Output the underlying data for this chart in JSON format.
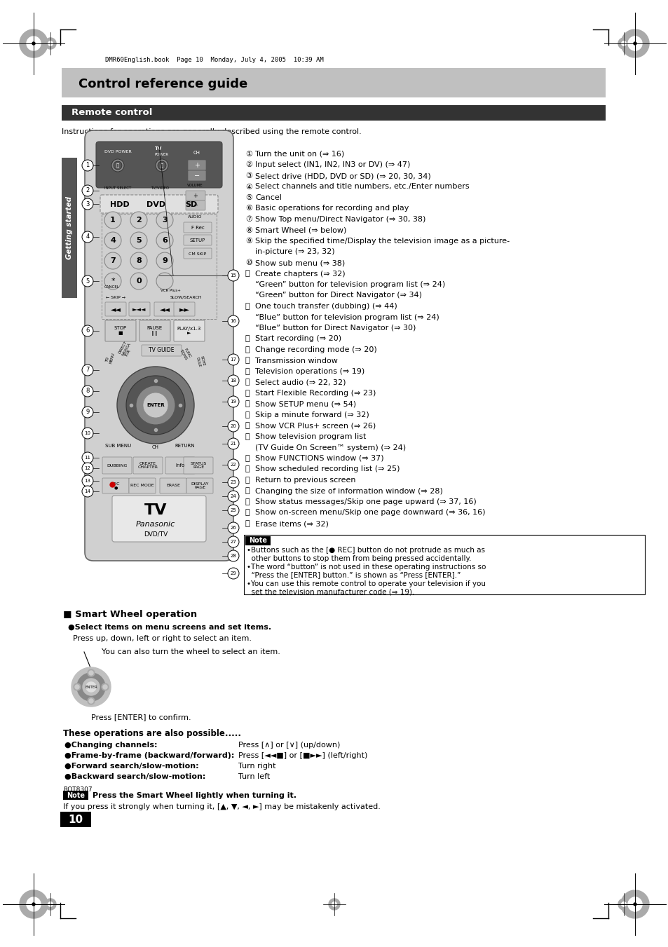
{
  "bg_color": "#ffffff",
  "title_bg_color": "#c8c8c8",
  "section_bg_color": "#333333",
  "title_text": "Control reference guide",
  "section_title": "Remote control",
  "instruction_text": "Instructions for operations are generally described using the remote control.",
  "file_ref_text": "DMR60English.book  Page 10  Monday, July 4, 2005  10:39 AM",
  "getting_started_text": "Getting started",
  "numbered_items": [
    [
      "①",
      "Turn the unit on (⇒ 16)"
    ],
    [
      "②",
      "Input select (IN1, IN2, IN3 or DV) (⇒ 47)"
    ],
    [
      "③",
      "Select drive (HDD, DVD or SD) (⇒ 20, 30, 34)"
    ],
    [
      "④",
      "Select channels and title numbers, etc./Enter numbers"
    ],
    [
      "⑤",
      "Cancel"
    ],
    [
      "⑥",
      "Basic operations for recording and play"
    ],
    [
      "⑦",
      "Show Top menu/Direct Navigator (⇒ 30, 38)"
    ],
    [
      "⑧",
      "Smart Wheel (⇒ below)"
    ],
    [
      "⑨",
      "Skip the specified time/Display the television image as a picture-"
    ],
    [
      "",
      "in-picture (⇒ 23, 32)"
    ],
    [
      "⑩",
      "Show sub menu (⇒ 38)"
    ],
    [
      "⑪",
      "Create chapters (⇒ 32)"
    ],
    [
      "",
      "“Green” button for television program list (⇒ 24)"
    ],
    [
      "",
      "“Green” button for Direct Navigator (⇒ 34)"
    ],
    [
      "⑫",
      "One touch transfer (dubbing) (⇒ 44)"
    ],
    [
      "",
      "“Blue” button for television program list (⇒ 24)"
    ],
    [
      "",
      "“Blue” button for Direct Navigator (⇒ 30)"
    ],
    [
      "⑬",
      "Start recording (⇒ 20)"
    ],
    [
      "⑭",
      "Change recording mode (⇒ 20)"
    ],
    [
      "⑮",
      "Transmission window"
    ],
    [
      "⑯",
      "Television operations (⇒ 19)"
    ],
    [
      "⑰",
      "Select audio (⇒ 22, 32)"
    ],
    [
      "⑱",
      "Start Flexible Recording (⇒ 23)"
    ],
    [
      "⑲",
      "Show SETUP menu (⇒ 54)"
    ],
    [
      "⑳",
      "Skip a minute forward (⇒ 32)"
    ],
    [
      "㉑",
      "Show VCR Plus+ screen (⇒ 26)"
    ],
    [
      "㉒",
      "Show television program list"
    ],
    [
      "",
      "(TV Guide On Screen™ system) (⇒ 24)"
    ],
    [
      "㉓",
      "Show FUNCTIONS window (⇒ 37)"
    ],
    [
      "㉔",
      "Show scheduled recording list (⇒ 25)"
    ],
    [
      "㉕",
      "Return to previous screen"
    ],
    [
      "㉖",
      "Changing the size of information window (⇒ 28)"
    ],
    [
      "㉗",
      "Show status messages/Skip one page upward (⇒ 37, 16)"
    ],
    [
      "㉘",
      "Show on-screen menu/Skip one page downward (⇒ 36, 16)"
    ],
    [
      "㉙",
      "Erase items (⇒ 32)"
    ]
  ],
  "note_lines": [
    "•Buttons such as the [● REC] button do not protrude as much as",
    "  other buttons to stop them from being pressed accidentally.",
    "•The word “button” is not used in these operating instructions so",
    "  “Press the [ENTER] button.” is shown as “Press [ENTER].”",
    "•You can use this remote control to operate your television if you",
    "  set the television manufacturer code (⇒ 19)."
  ],
  "smart_wheel_title": "■ Smart Wheel operation",
  "sw_bullet1": "●Select items on menu screens and set items.",
  "sw_text1": "Press up, down, left or right to select an item.",
  "sw_text2": "You can also turn the wheel to select an item.",
  "sw_text3": "Press [ENTER] to confirm.",
  "ops_title": "These operations are also possible.....",
  "ops": [
    [
      "●Changing channels:",
      "Press [∧] or [∨] (up/down)"
    ],
    [
      "●Frame-by-frame (backward/forward):",
      "Press [◄◄■] or [■►►] (left/right)"
    ],
    [
      "●Forward search/slow-motion:",
      "Turn right"
    ],
    [
      "●Backward search/slow-motion:",
      "Turn left"
    ]
  ],
  "bot_note_bold": "Press the Smart Wheel lightly when turning it.",
  "bot_note_text": "If you press it strongly when turning it, [▲, ▼, ◄, ►] may be mistakenly activated.",
  "page_number": "10",
  "file_ref": "RQT8307",
  "remote_body_color": "#d8d8d8",
  "remote_dark_color": "#555555",
  "remote_border_color": "#444444"
}
